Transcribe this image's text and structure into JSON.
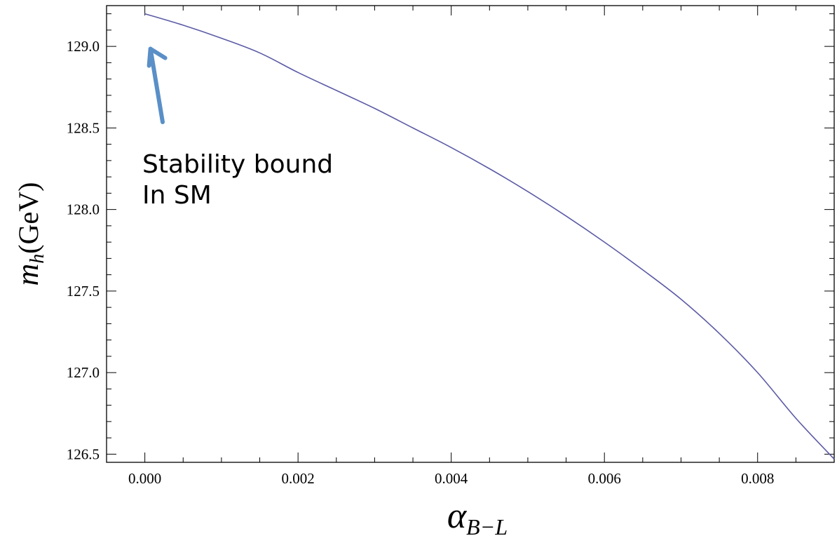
{
  "chart_data": {
    "type": "line",
    "title": "",
    "xlabel": "α",
    "xlabel_sub": "B−L",
    "ylabel_main": "m",
    "ylabel_sub": "h",
    "ylabel_unit": "(GeV)",
    "xlim": [
      -0.0005,
      0.009
    ],
    "ylim": [
      126.45,
      129.25
    ],
    "x_ticks": [
      0.0,
      0.002,
      0.004,
      0.006,
      0.008
    ],
    "x_tick_labels": [
      "0.000",
      "0.002",
      "0.004",
      "0.006",
      "0.008"
    ],
    "y_ticks": [
      126.5,
      127.0,
      127.5,
      128.0,
      128.5,
      129.0
    ],
    "y_tick_labels": [
      "126.5",
      "127.0",
      "127.5",
      "128.0",
      "128.5",
      "129.0"
    ],
    "grid": false,
    "line_color": "#5b5ba6",
    "series": [
      {
        "x": [
          0.0,
          0.0005,
          0.001,
          0.0015,
          0.002,
          0.0025,
          0.003,
          0.0035,
          0.004,
          0.0045,
          0.005,
          0.0055,
          0.006,
          0.0065,
          0.007,
          0.0075,
          0.008,
          0.0085,
          0.009
        ],
        "y": [
          129.2,
          129.13,
          129.05,
          128.96,
          128.84,
          128.73,
          128.62,
          128.5,
          128.38,
          128.25,
          128.11,
          127.96,
          127.8,
          127.63,
          127.45,
          127.24,
          127.0,
          126.72,
          126.47
        ]
      }
    ],
    "annotation": {
      "lines": [
        "Stability bound",
        "In SM"
      ],
      "arrow_color": "#5a8fc7",
      "points_to": [
        0.0,
        129.2
      ]
    }
  }
}
